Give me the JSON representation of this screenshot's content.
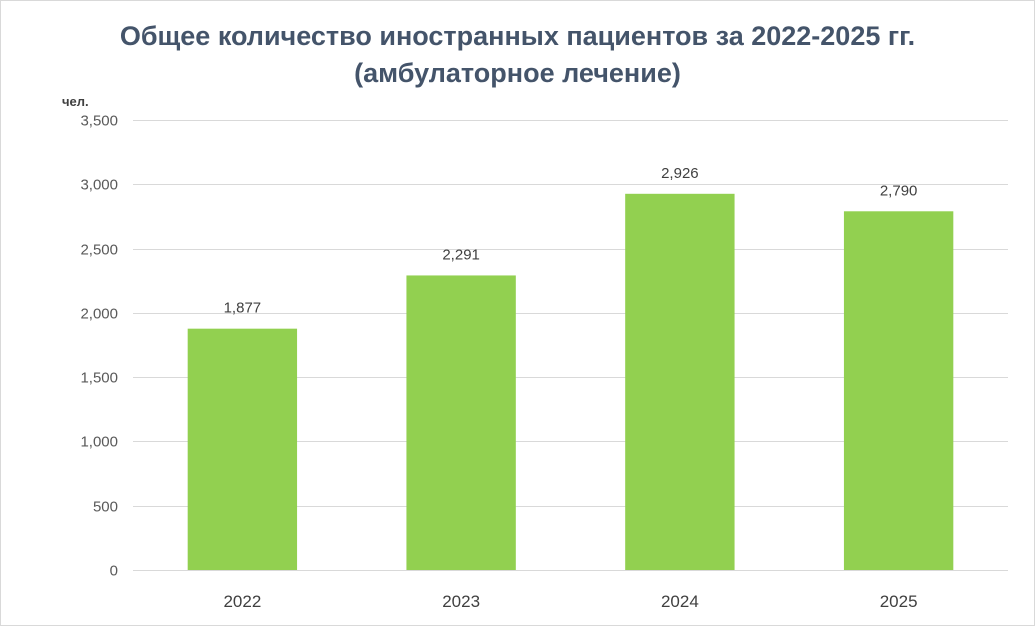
{
  "chart_data": {
    "type": "bar",
    "title": "Общее количество иностранных пациентов за 2022-2025 гг.",
    "subtitle": "(амбулаторное лечение)",
    "ylabel": "чел.",
    "xlabel": "",
    "categories": [
      "2022",
      "2023",
      "2024",
      "2025"
    ],
    "values": [
      1877,
      2291,
      2926,
      2790
    ],
    "value_labels": [
      "1,877",
      "2,291",
      "2,926",
      "2,790"
    ],
    "ylim": [
      0,
      3500
    ],
    "yticks": [
      0,
      500,
      1000,
      1500,
      2000,
      2500,
      3000,
      3500
    ],
    "ytick_labels": [
      "0",
      "500",
      "1,000",
      "1,500",
      "2,000",
      "2,500",
      "3,000",
      "3,500"
    ],
    "grid": true,
    "legend": "none",
    "colors": {
      "bar": "#92d050",
      "grid": "#d9d9d9",
      "title": "#44546a"
    }
  }
}
